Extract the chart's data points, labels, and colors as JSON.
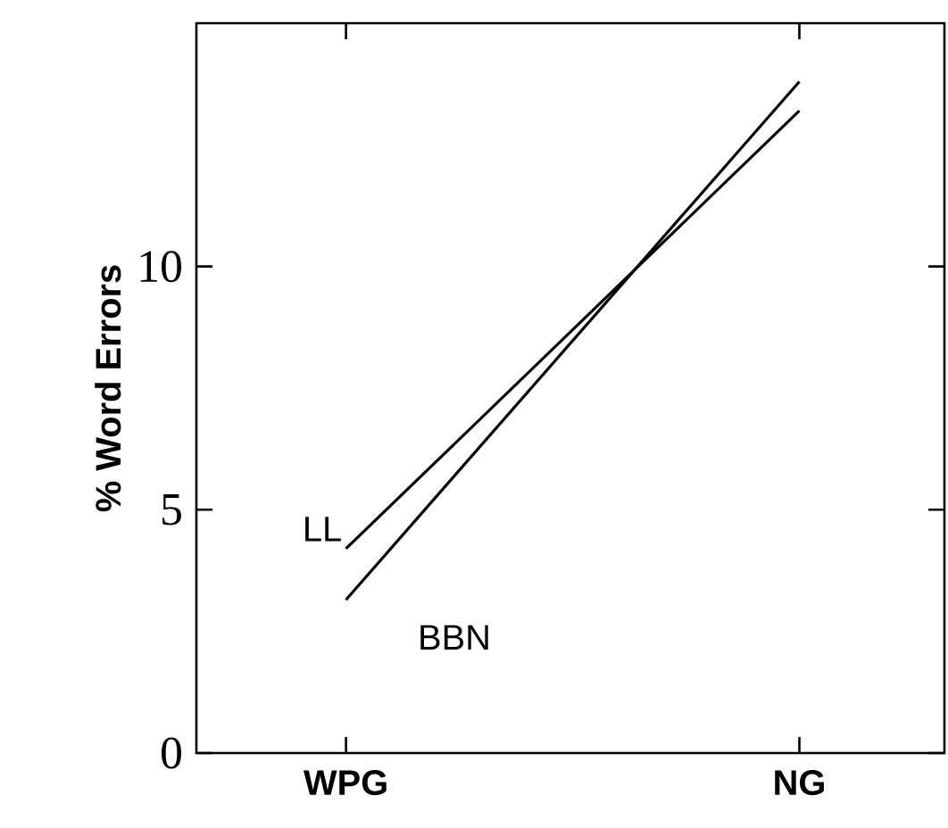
{
  "chart_data": {
    "type": "line",
    "ylabel": "% Word Errors",
    "categories": [
      "WPG",
      "NG"
    ],
    "series": [
      {
        "name": "LL",
        "color": "#000000",
        "values": [
          4.2,
          13.2
        ]
      },
      {
        "name": "BBN",
        "color": "#000000",
        "values": [
          3.15,
          13.8
        ]
      }
    ],
    "ylim": [
      0,
      15
    ],
    "yticks": [
      0,
      5,
      10
    ],
    "legend": false,
    "marker": "none",
    "line_style": "solid"
  }
}
